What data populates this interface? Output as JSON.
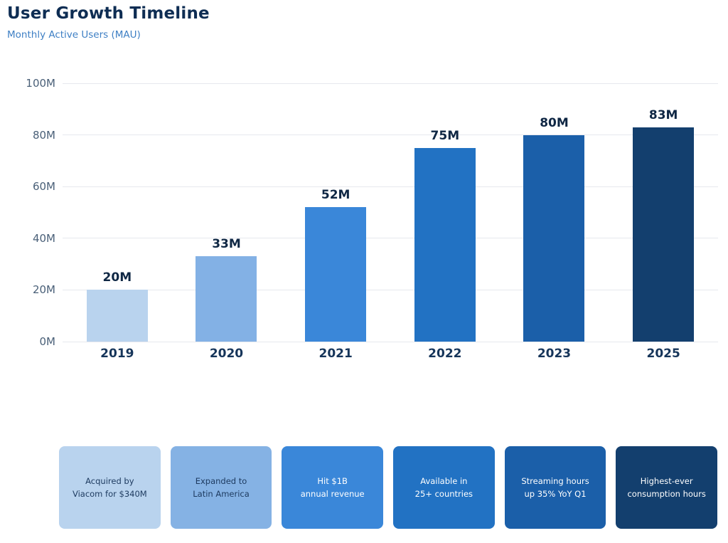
{
  "header": {
    "title": "User Growth Timeline",
    "subtitle": "Monthly Active Users (MAU)"
  },
  "colors": {
    "title": "#0e2d53",
    "subtitle": "#3e7fc4",
    "ytick_label": "#4a6078",
    "xtick_label": "#16355a",
    "value_label": "#0f2744",
    "gridline": "#e6e8ee",
    "background": "#ffffff"
  },
  "chart_data": {
    "type": "bar",
    "title": "User Growth Timeline",
    "subtitle": "Monthly Active Users (MAU)",
    "categories": [
      "2019",
      "2020",
      "2021",
      "2022",
      "2023",
      "2025"
    ],
    "values": [
      20,
      33,
      52,
      75,
      80,
      83
    ],
    "value_labels": [
      "20M",
      "33M",
      "52M",
      "75M",
      "80M",
      "83M"
    ],
    "bar_colors": [
      "#b9d3ee",
      "#83b1e5",
      "#3a87d9",
      "#2272c3",
      "#1b5fa9",
      "#133f6e"
    ],
    "xlabel": "",
    "ylabel": "",
    "ylim": [
      0,
      100
    ],
    "yticks": [
      0,
      20,
      40,
      60,
      80,
      100
    ],
    "ytick_labels": [
      "0M",
      "20M",
      "40M",
      "60M",
      "80M",
      "100M"
    ],
    "grid": true,
    "legend": false
  },
  "milestone_cards": [
    {
      "line1": "Acquired by",
      "line2": "Viacom for $340M",
      "bg": "#b9d3ee",
      "text_color": "#1d3a5f"
    },
    {
      "line1": "Expanded to",
      "line2": "Latin America",
      "bg": "#85b2e4",
      "text_color": "#1d3a5f"
    },
    {
      "line1": "Hit $1B",
      "line2": "annual revenue",
      "bg": "#3a87d9",
      "text_color": "#ffffff"
    },
    {
      "line1": "Available in",
      "line2": "25+ countries",
      "bg": "#2272c3",
      "text_color": "#ffffff"
    },
    {
      "line1": "Streaming hours",
      "line2": "up 35% YoY Q1",
      "bg": "#1b5fa9",
      "text_color": "#ffffff"
    },
    {
      "line1": "Highest-ever",
      "line2": "consumption hours",
      "bg": "#133f6e",
      "text_color": "#ffffff"
    }
  ]
}
